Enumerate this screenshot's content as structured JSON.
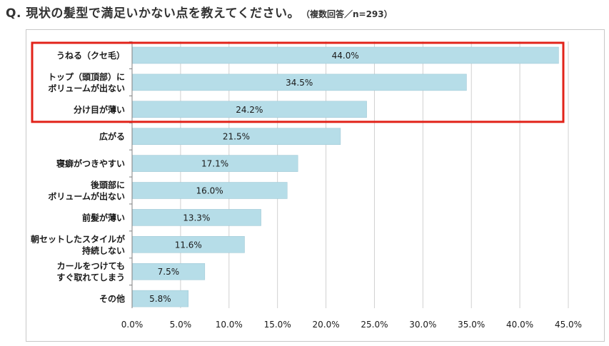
{
  "title": {
    "question": "Q.  現状の髪型で満足いかない点を教えてください。",
    "note": "（複数回答／n=293）"
  },
  "chart_data": {
    "type": "bar",
    "orientation": "horizontal",
    "categories": [
      [
        "うねる（クセ毛）"
      ],
      [
        "トップ（頭頂部）に",
        "ボリュームが出ない"
      ],
      [
        "分け目が薄い"
      ],
      [
        "広がる"
      ],
      [
        "寝癖がつきやすい"
      ],
      [
        "後頭部に",
        "ボリュームが出ない"
      ],
      [
        "前髪が薄い"
      ],
      [
        "朝セットしたスタイルが",
        "持続しない"
      ],
      [
        "カールをつけても",
        "すぐ取れてしまう"
      ],
      [
        "その他"
      ]
    ],
    "values": [
      44.0,
      34.5,
      24.2,
      21.5,
      17.1,
      16.0,
      13.3,
      11.6,
      7.5,
      5.8
    ],
    "data_labels": [
      "44.0%",
      "34.5%",
      "24.2%",
      "21.5%",
      "17.1%",
      "16.0%",
      "13.3%",
      "11.6%",
      "7.5%",
      "5.8%"
    ],
    "xlim": [
      0,
      45
    ],
    "xticks": [
      0,
      5,
      10,
      15,
      20,
      25,
      30,
      35,
      40,
      45
    ],
    "xtick_labels": [
      "0.0%",
      "5.0%",
      "10.0%",
      "15.0%",
      "20.0%",
      "25.0%",
      "30.0%",
      "35.0%",
      "40.0%",
      "45.0%"
    ],
    "highlight_top_n": 3,
    "grid": true,
    "legend": "none",
    "colors": {
      "bar": "#b6dde8",
      "bar_border": "#9cc5d3",
      "highlight": "#e2231a",
      "grid": "#d0d0d0",
      "axis": "#808080",
      "frame": "#c8c8c8"
    }
  }
}
